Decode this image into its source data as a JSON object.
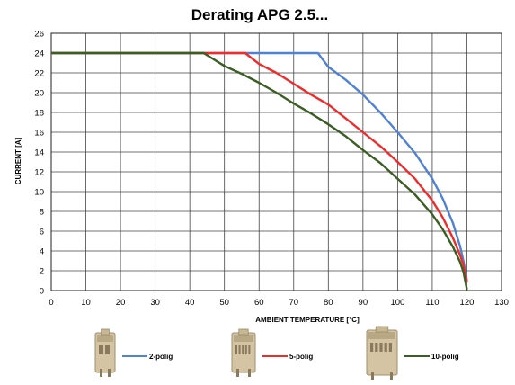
{
  "chart_data": {
    "type": "line",
    "title": "Derating APG 2.5...",
    "xlabel": "AMBIENT TEMPERATURE [°C]",
    "ylabel": "CURRENT [A]",
    "xlim": [
      0,
      130
    ],
    "ylim": [
      0,
      26
    ],
    "xticks": [
      0,
      10,
      20,
      30,
      40,
      50,
      60,
      70,
      80,
      90,
      100,
      110,
      120,
      130
    ],
    "yticks": [
      0,
      2,
      4,
      6,
      8,
      10,
      12,
      14,
      16,
      18,
      20,
      22,
      24,
      26
    ],
    "grid": true,
    "legend_position": "bottom",
    "series": [
      {
        "name": "2-polig",
        "color": "#4f81d4",
        "icon": "connector-2-pole-icon",
        "x": [
          0,
          77,
          80,
          85,
          90,
          95,
          100,
          105,
          110,
          113,
          116,
          118,
          119,
          120
        ],
        "y": [
          24,
          24,
          22.6,
          21.3,
          19.8,
          18.0,
          16.0,
          13.9,
          11.3,
          9.3,
          6.8,
          4.5,
          3.0,
          1.0
        ]
      },
      {
        "name": "5-polig",
        "color": "#ef2b2b",
        "icon": "connector-5-pole-icon",
        "x": [
          0,
          56,
          60,
          65,
          70,
          75,
          80,
          85,
          90,
          95,
          100,
          105,
          110,
          113,
          116,
          118,
          119,
          120
        ],
        "y": [
          24,
          24,
          22.9,
          22.0,
          20.9,
          19.8,
          18.8,
          17.4,
          16.0,
          14.6,
          13.0,
          11.3,
          9.1,
          7.4,
          5.3,
          3.6,
          2.6,
          0.8
        ]
      },
      {
        "name": "10-polig",
        "color": "#3a5e23",
        "icon": "connector-10-pole-icon",
        "x": [
          0,
          44,
          50,
          55,
          60,
          65,
          70,
          75,
          80,
          85,
          90,
          95,
          100,
          105,
          110,
          113,
          116,
          118,
          119,
          120
        ],
        "y": [
          24,
          24,
          22.7,
          21.9,
          21.0,
          20.0,
          18.9,
          17.9,
          16.8,
          15.6,
          14.2,
          12.9,
          11.3,
          9.7,
          7.7,
          6.2,
          4.4,
          2.9,
          1.9,
          0.1
        ]
      }
    ]
  }
}
